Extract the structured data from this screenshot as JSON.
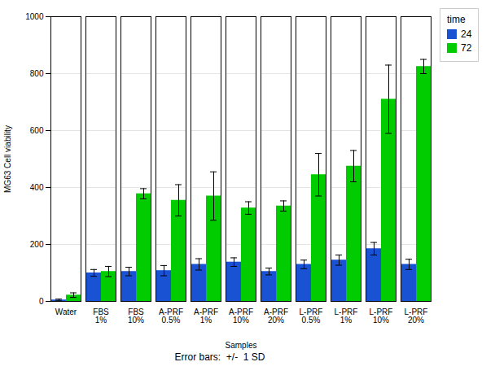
{
  "chart_data": {
    "type": "bar",
    "categories": [
      "Water",
      "FBS\n1%",
      "FBS\n10%",
      "A-PRF\n0.5%",
      "A-PRF\n1%",
      "A-PRF\n10%",
      "A-PRF\n20%",
      "L-PRF\n0.5%",
      "L-PRF\n1%",
      "L-PRF\n10%",
      "L-PRF\n20%"
    ],
    "series": [
      {
        "name": "24",
        "color": "#1a52d4",
        "values": [
          5,
          100,
          105,
          108,
          130,
          138,
          105,
          130,
          145,
          185,
          130
        ],
        "errors": [
          3,
          12,
          15,
          18,
          20,
          15,
          12,
          15,
          18,
          22,
          18
        ]
      },
      {
        "name": "72",
        "color": "#00cc00",
        "values": [
          22,
          105,
          378,
          355,
          370,
          328,
          335,
          445,
          475,
          710,
          825
        ],
        "errors": [
          8,
          18,
          18,
          55,
          85,
          22,
          18,
          75,
          55,
          120,
          25
        ]
      }
    ],
    "xlabel": "Samples",
    "ylabel": "MG63 Cell viability",
    "legend_title": "time",
    "footnote": "Error bars:  +/-  1 SD",
    "ylim": [
      0,
      1000
    ],
    "yticks": [
      0,
      200,
      400,
      600,
      800,
      1000
    ],
    "grid": true,
    "legend": "right"
  }
}
